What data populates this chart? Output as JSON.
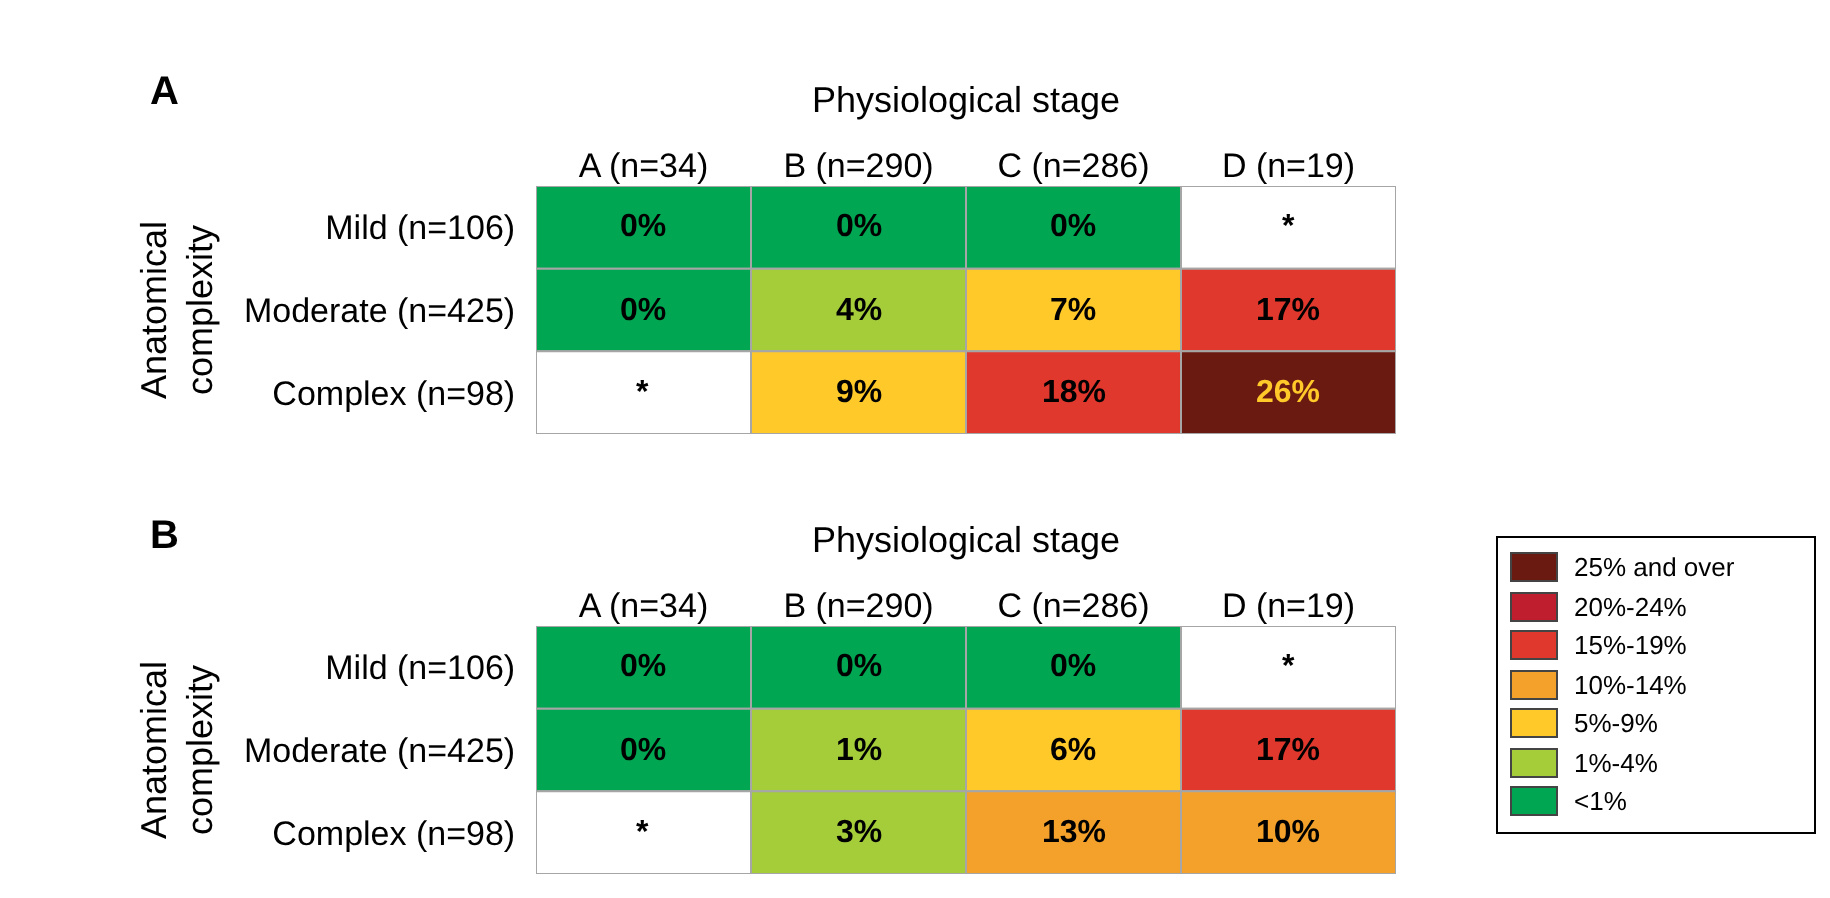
{
  "chart_data": [
    {
      "type": "heatmap",
      "title": "A",
      "xlabel": "Physiological stage",
      "ylabel": "Anatomical complexity",
      "categories": [
        "A (n=34)",
        "B (n=290)",
        "C (n=286)",
        "D (n=19)"
      ],
      "y_categories": [
        "Mild (n=106)",
        "Moderate (n=425)",
        "Complex (n=98)"
      ],
      "cells": [
        [
          0,
          0,
          0,
          null
        ],
        [
          0,
          4,
          7,
          17
        ],
        [
          null,
          9,
          18,
          26
        ]
      ],
      "cell_labels": [
        [
          "0%",
          "0%",
          "0%",
          "*"
        ],
        [
          "0%",
          "4%",
          "7%",
          "17%"
        ],
        [
          "*",
          "9%",
          "18%",
          "26%"
        ]
      ],
      "colors": [
        [
          "#00a651",
          "#00a651",
          "#00a651",
          "#ffffff"
        ],
        [
          "#00a651",
          "#a4cd39",
          "#ffc929",
          "#e1382d"
        ],
        [
          "#ffffff",
          "#ffc929",
          "#e1382d",
          "#6b1a12"
        ]
      ]
    },
    {
      "type": "heatmap",
      "title": "B",
      "xlabel": "Physiological stage",
      "ylabel": "Anatomical complexity",
      "categories": [
        "A (n=34)",
        "B (n=290)",
        "C (n=286)",
        "D (n=19)"
      ],
      "y_categories": [
        "Mild (n=106)",
        "Moderate (n=425)",
        "Complex (n=98)"
      ],
      "cells": [
        [
          0,
          0,
          0,
          null
        ],
        [
          0,
          1,
          6,
          17
        ],
        [
          null,
          3,
          13,
          10
        ]
      ],
      "cell_labels": [
        [
          "0%",
          "0%",
          "0%",
          "*"
        ],
        [
          "0%",
          "1%",
          "6%",
          "17%"
        ],
        [
          "*",
          "3%",
          "13%",
          "10%"
        ]
      ],
      "colors": [
        [
          "#00a651",
          "#00a651",
          "#00a651",
          "#ffffff"
        ],
        [
          "#00a651",
          "#a4cd39",
          "#ffc929",
          "#e1382d"
        ],
        [
          "#ffffff",
          "#a4cd39",
          "#f4a12c",
          "#f4a12c"
        ]
      ]
    },
    {
      "type": "other",
      "categories": [
        "25% and over",
        "20%-24%",
        "15%-19%",
        "10%-14%",
        "5%-9%",
        "1%-4%",
        "<1%"
      ],
      "colors": [
        "#6b1a12",
        "#be1e2d",
        "#e1382d",
        "#f4a12c",
        "#ffc929",
        "#a4cd39",
        "#00a651"
      ]
    }
  ]
}
